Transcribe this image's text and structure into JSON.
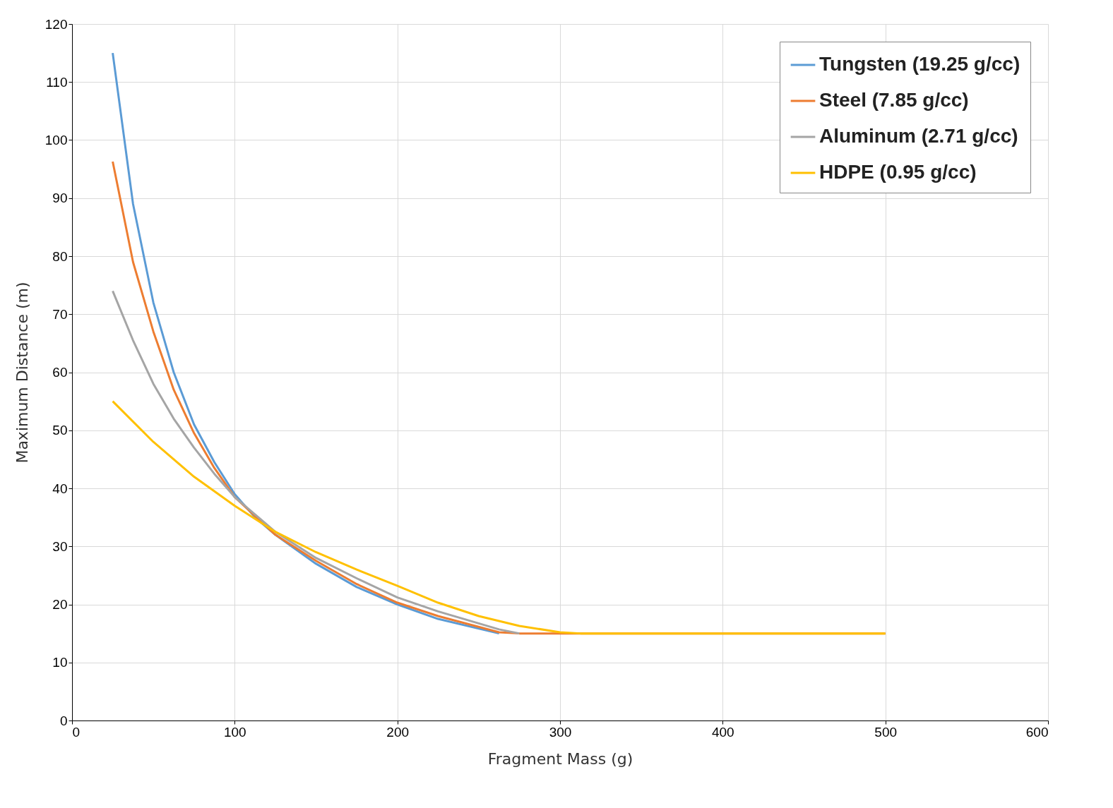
{
  "chart_data": {
    "type": "line",
    "xlabel": "Fragment Mass (g)",
    "ylabel": "Maximum Distance (m)",
    "xlim": [
      0,
      600
    ],
    "xticks": [
      0,
      100,
      200,
      300,
      400,
      500,
      600
    ],
    "ylim": [
      0,
      120
    ],
    "yticks": [
      0,
      10,
      20,
      30,
      40,
      50,
      60,
      70,
      80,
      90,
      100,
      110,
      120
    ],
    "grid": true,
    "legend": "top right",
    "marker": "none",
    "line_style": "solid",
    "series": [
      {
        "name": "Tungsten (19.25 g/cc)",
        "color": "#5b9bd5",
        "x": [
          25,
          37.5,
          50,
          62.5,
          75,
          87.5,
          100,
          112.5,
          125,
          150,
          175,
          200,
          225,
          262.5
        ],
        "values": [
          115,
          89,
          72,
          60,
          51,
          44.5,
          39,
          35,
          32,
          27,
          23,
          20,
          17.5,
          15
        ]
      },
      {
        "name": "Steel (7.85 g/cc)",
        "color": "#ed7d31",
        "x": [
          25,
          37.5,
          50,
          62.5,
          75,
          87.5,
          100,
          125,
          150,
          175,
          200,
          225,
          262.5,
          275,
          500
        ],
        "values": [
          96.3,
          79,
          67,
          57,
          49.5,
          43.5,
          38.5,
          32,
          27.5,
          23.5,
          20.3,
          18,
          15.2,
          15,
          15
        ]
      },
      {
        "name": "Aluminum (2.71 g/cc)",
        "color": "#a5a5a5",
        "x": [
          25,
          37.5,
          50,
          62.5,
          75,
          87.5,
          100,
          125,
          150,
          175,
          200,
          225,
          262.5,
          275
        ],
        "values": [
          74,
          65.5,
          58,
          52,
          47,
          42.5,
          38.5,
          32.5,
          28,
          24.5,
          21.2,
          18.8,
          15.7,
          15
        ]
      },
      {
        "name": "HDPE (0.95 g/cc)",
        "color": "#ffc000",
        "x": [
          25,
          50,
          75,
          100,
          125,
          150,
          175,
          200,
          225,
          250,
          275,
          300,
          312.5,
          500
        ],
        "values": [
          55,
          48,
          42,
          37,
          32.5,
          29,
          26,
          23.2,
          20.3,
          18,
          16.3,
          15.2,
          15,
          15
        ]
      }
    ]
  }
}
